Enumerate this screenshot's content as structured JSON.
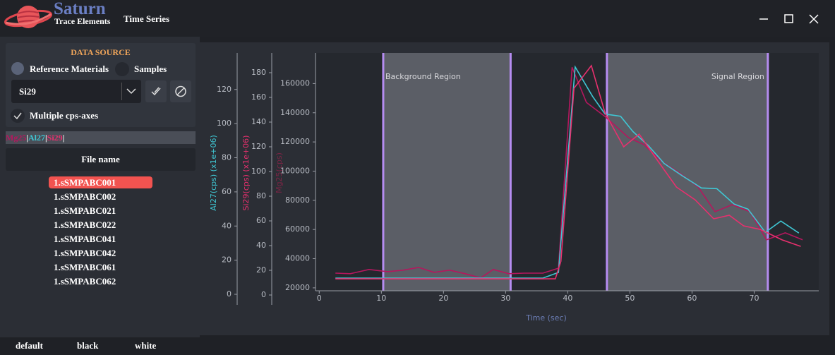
{
  "header": {
    "app_name": "Saturn",
    "app_subtitle": "Trace Elements",
    "window_title": "Time Series"
  },
  "sidebar": {
    "section_title": "DATA SOURCE",
    "source_options": [
      "Reference Materials",
      "Samples"
    ],
    "selected_element": "Si29",
    "multiple_axes_label": "Multiple cps-axes",
    "multiple_axes_checked": true,
    "element_legend": {
      "items": [
        {
          "name": "Mg25",
          "color": "#b5175e"
        },
        {
          "name": "Al27",
          "color": "#3fc7d4"
        },
        {
          "name": "Si29",
          "color": "#e8306e"
        }
      ],
      "separator": "|"
    },
    "file_list": {
      "header": "File name",
      "files": [
        "1.sSMPABC001",
        "1.sSMPABC002",
        "1.sSMPABC021",
        "1.sSMPABC022",
        "1.sSMPABC041",
        "1.sSMPABC042",
        "1.sSMPABC061",
        "1.sSMPABC062"
      ],
      "selected": 0
    }
  },
  "footer": {
    "themes": [
      "default",
      "black",
      "white"
    ]
  },
  "chart_data": {
    "type": "line",
    "xlabel": "Time (sec)",
    "xlim": [
      -0.6,
      80.4
    ],
    "xticks": [
      0,
      10,
      20,
      30,
      40,
      50,
      60,
      70
    ],
    "ylabel": "Mg25(cps)",
    "ylim": [
      18000,
      181000
    ],
    "yticks": [
      20000,
      40000,
      60000,
      80000,
      100000,
      120000,
      140000,
      160000
    ],
    "y2label": "Si29(cps) (x1e+06)",
    "y2lim": [
      -8,
      196
    ],
    "y2ticks": [
      0,
      20,
      40,
      60,
      80,
      100,
      120,
      140,
      160,
      180
    ],
    "y3label": "Al27(cps) (x1e+06)",
    "y3lim": [
      -6.2,
      141.4
    ],
    "y3ticks": [
      0,
      20,
      40,
      60,
      80,
      100,
      120
    ],
    "regions": [
      {
        "label": "Background Region",
        "start": 10.3,
        "end": 30.8
      },
      {
        "label": "Signal Region",
        "start": 46.3,
        "end": 72.2
      }
    ],
    "series": [
      {
        "name": "Mg25",
        "color": "#b5175e",
        "axis": "y",
        "x": [
          2.6,
          5,
          8,
          11,
          13.5,
          16,
          18.5,
          21,
          23.5,
          26,
          28,
          30.5,
          33,
          36,
          38.5,
          40.7,
          43,
          46,
          49.8,
          52.3,
          55,
          58,
          61,
          63.7,
          66.5,
          69.3,
          72,
          75,
          77.8
        ],
        "values": [
          30100,
          29700,
          32600,
          31100,
          32100,
          34000,
          30600,
          32100,
          29700,
          26800,
          32600,
          29700,
          30100,
          30100,
          33500,
          171200,
          147100,
          137400,
          122900,
          118100,
          107000,
          98700,
          89100,
          72200,
          77000,
          72200,
          52900,
          57700,
          52900
        ]
      },
      {
        "name": "Al27",
        "color": "#3fc7d4",
        "axis": "y3",
        "x": [
          2.6,
          36,
          38.5,
          41.2,
          44,
          46,
          48.5,
          50.5,
          53,
          55.5,
          58.5,
          61.5,
          64,
          66.8,
          69,
          71.8,
          74.3,
          77.2
        ],
        "values": [
          9.5,
          9.5,
          12.8,
          133.2,
          115.9,
          105.6,
          104.3,
          95.3,
          87.0,
          76.7,
          69.3,
          62.3,
          61.9,
          52.8,
          49.9,
          36.3,
          42.9,
          35.9
        ]
      },
      {
        "name": "Si29",
        "color": "#e8306e",
        "axis": "y2",
        "x": [
          2.6,
          38,
          38.9,
          41,
          43.8,
          46,
          49,
          51.5,
          54.5,
          57.5,
          60.5,
          63.5,
          66,
          68.3,
          71,
          74.5,
          77.5
        ],
        "values": [
          13.1,
          13.1,
          27.4,
          167.4,
          185.7,
          147.4,
          120,
          130.3,
          108.6,
          87.4,
          77.1,
          61.7,
          64.6,
          56,
          53.1,
          44.6,
          39.4
        ]
      }
    ]
  }
}
